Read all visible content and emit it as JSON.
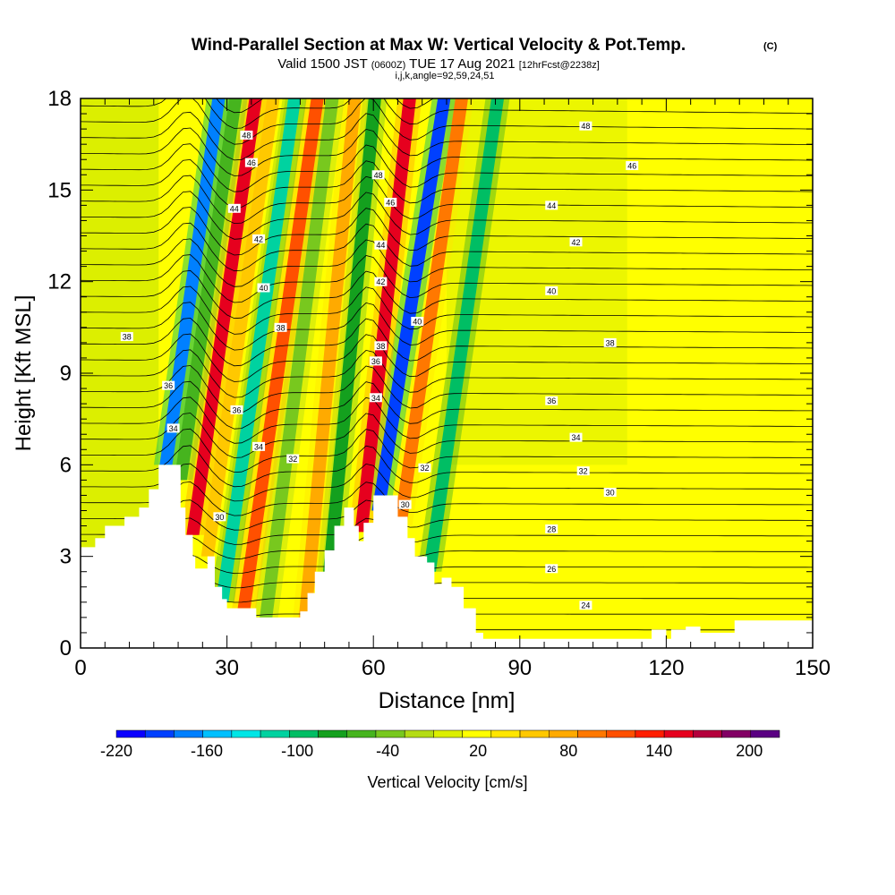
{
  "header": {
    "title_main": "Wind-Parallel Section at Max W: Vertical Velocity & Pot.Temp.",
    "title_tag": "(C)",
    "valid_a": "Valid 1500 JST",
    "valid_utc": "(0600Z)",
    "valid_b": "TUE 17 Aug 2021",
    "forecast": "[12hrFcst@2238z]",
    "indices": "i,j,k,angle=92,59,24,51"
  },
  "chart_data": {
    "type": "heatmap",
    "xlabel": "Distance [nm]",
    "ylabel": "Height [Kft MSL]",
    "xlim": [
      0,
      150
    ],
    "ylim": [
      0,
      18
    ],
    "x_ticks": [
      0,
      30,
      60,
      90,
      120,
      150
    ],
    "y_ticks": [
      0,
      3,
      6,
      9,
      12,
      15,
      18
    ],
    "contour_field": "potential temperature",
    "contour_labels": [
      {
        "text": "48",
        "x": 34.0,
        "y": 16.8
      },
      {
        "text": "46",
        "x": 35.0,
        "y": 15.9
      },
      {
        "text": "44",
        "x": 31.5,
        "y": 14.4
      },
      {
        "text": "42",
        "x": 36.5,
        "y": 13.4
      },
      {
        "text": "40",
        "x": 37.5,
        "y": 11.8
      },
      {
        "text": "38",
        "x": 9.5,
        "y": 10.2
      },
      {
        "text": "38",
        "x": 41.0,
        "y": 10.5
      },
      {
        "text": "36",
        "x": 18.0,
        "y": 8.6
      },
      {
        "text": "36",
        "x": 32.0,
        "y": 7.8
      },
      {
        "text": "34",
        "x": 19.0,
        "y": 7.2
      },
      {
        "text": "34",
        "x": 36.5,
        "y": 6.6
      },
      {
        "text": "32",
        "x": 43.5,
        "y": 6.2
      },
      {
        "text": "30",
        "x": 28.5,
        "y": 4.3
      },
      {
        "text": "48",
        "x": 61.0,
        "y": 15.5
      },
      {
        "text": "46",
        "x": 63.5,
        "y": 14.6
      },
      {
        "text": "44",
        "x": 61.5,
        "y": 13.2
      },
      {
        "text": "42",
        "x": 61.5,
        "y": 12.0
      },
      {
        "text": "40",
        "x": 69.0,
        "y": 10.7
      },
      {
        "text": "38",
        "x": 61.5,
        "y": 9.9
      },
      {
        "text": "36",
        "x": 60.5,
        "y": 9.4
      },
      {
        "text": "34",
        "x": 60.5,
        "y": 8.2
      },
      {
        "text": "32",
        "x": 70.5,
        "y": 5.9
      },
      {
        "text": "30",
        "x": 66.5,
        "y": 4.7
      },
      {
        "text": "48",
        "x": 103.5,
        "y": 17.1
      },
      {
        "text": "46",
        "x": 113.0,
        "y": 15.8
      },
      {
        "text": "44",
        "x": 96.5,
        "y": 14.5
      },
      {
        "text": "42",
        "x": 101.5,
        "y": 13.3
      },
      {
        "text": "40",
        "x": 96.5,
        "y": 11.7
      },
      {
        "text": "38",
        "x": 108.5,
        "y": 10.0
      },
      {
        "text": "36",
        "x": 96.5,
        "y": 8.1
      },
      {
        "text": "34",
        "x": 101.5,
        "y": 6.9
      },
      {
        "text": "32",
        "x": 103.0,
        "y": 5.8
      },
      {
        "text": "30",
        "x": 108.5,
        "y": 5.1
      },
      {
        "text": "28",
        "x": 96.5,
        "y": 3.9
      },
      {
        "text": "26",
        "x": 96.5,
        "y": 2.6
      },
      {
        "text": "24",
        "x": 103.5,
        "y": 1.4
      }
    ],
    "colorbar": {
      "label": "Vertical Velocity [cm/s]",
      "tick_labels": [
        "-220",
        "-160",
        "-100",
        "-40",
        "20",
        "80",
        "140",
        "200"
      ],
      "tick_values": [
        -220,
        -160,
        -100,
        -40,
        20,
        80,
        140,
        200
      ],
      "bins": [
        -220,
        -200,
        -180,
        -160,
        -140,
        -120,
        -100,
        -80,
        -60,
        -40,
        -20,
        0,
        20,
        40,
        60,
        80,
        100,
        120,
        140,
        160,
        180,
        200,
        220
      ],
      "colors": [
        "#0a00ff",
        "#0040ff",
        "#0080ff",
        "#00c0ff",
        "#00e6e6",
        "#00d2a0",
        "#00be64",
        "#14a01e",
        "#46b41e",
        "#78c81e",
        "#b4dc14",
        "#dcef00",
        "#ffff00",
        "#ffe600",
        "#ffc800",
        "#ffaa00",
        "#ff7800",
        "#ff5000",
        "#ff1e00",
        "#e6001e",
        "#b4003c",
        "#820064",
        "#5a0082"
      ]
    },
    "vertical_velocity_cells": [
      {
        "x": 17.5,
        "y_bottom": 6.0,
        "y_top": 18.0,
        "value": -180,
        "tilt": 0.9
      },
      {
        "x": 20.5,
        "y_bottom": 5.5,
        "y_top": 18.0,
        "value": -60,
        "tilt": 0.9
      },
      {
        "x": 23.0,
        "y_bottom": 3.7,
        "y_top": 18.0,
        "value": 160,
        "tilt": 0.9
      },
      {
        "x": 26.0,
        "y_bottom": 3.0,
        "y_top": 18.0,
        "value": 60,
        "tilt": 0.9
      },
      {
        "x": 29.0,
        "y_bottom": 1.5,
        "y_top": 18.0,
        "value": -120,
        "tilt": 0.9
      },
      {
        "x": 33.5,
        "y_bottom": 1.3,
        "y_top": 18.0,
        "value": 120,
        "tilt": 0.9
      },
      {
        "x": 38.0,
        "y_bottom": 1.0,
        "y_top": 18.0,
        "value": -40,
        "tilt": 0.8
      },
      {
        "x": 46.0,
        "y_bottom": 1.0,
        "y_top": 18.0,
        "value": 80,
        "tilt": 0.6
      },
      {
        "x": 51.0,
        "y_bottom": 2.5,
        "y_top": 18.0,
        "value": -80,
        "tilt": 0.6
      },
      {
        "x": 57.5,
        "y_bottom": 3.8,
        "y_top": 18.0,
        "value": 160,
        "tilt": 0.7
      },
      {
        "x": 61.0,
        "y_bottom": 4.5,
        "y_top": 18.0,
        "value": -200,
        "tilt": 1.0
      },
      {
        "x": 65.5,
        "y_bottom": 4.0,
        "y_top": 18.0,
        "value": 100,
        "tilt": 0.9
      },
      {
        "x": 71.5,
        "y_bottom": 2.5,
        "y_top": 18.0,
        "value": -100,
        "tilt": 0.9
      }
    ],
    "terrain_top": [
      {
        "x": 0,
        "y": 3.3
      },
      {
        "x": 3,
        "y": 3.6
      },
      {
        "x": 5,
        "y": 4.0
      },
      {
        "x": 9,
        "y": 4.3
      },
      {
        "x": 12,
        "y": 4.6
      },
      {
        "x": 14,
        "y": 5.2
      },
      {
        "x": 16,
        "y": 6.0
      },
      {
        "x": 19,
        "y": 6.0
      },
      {
        "x": 20.5,
        "y": 4.6
      },
      {
        "x": 21.5,
        "y": 3.7
      },
      {
        "x": 23,
        "y": 3.0
      },
      {
        "x": 23.5,
        "y": 2.6
      },
      {
        "x": 26,
        "y": 3.0
      },
      {
        "x": 27.5,
        "y": 2.0
      },
      {
        "x": 29,
        "y": 1.6
      },
      {
        "x": 30,
        "y": 1.3
      },
      {
        "x": 35,
        "y": 1.3
      },
      {
        "x": 36,
        "y": 1.0
      },
      {
        "x": 43,
        "y": 1.0
      },
      {
        "x": 45,
        "y": 1.2
      },
      {
        "x": 46.5,
        "y": 1.8
      },
      {
        "x": 48,
        "y": 2.5
      },
      {
        "x": 50,
        "y": 3.2
      },
      {
        "x": 52,
        "y": 4.0
      },
      {
        "x": 54,
        "y": 4.6
      },
      {
        "x": 56,
        "y": 4.0
      },
      {
        "x": 57,
        "y": 3.5
      },
      {
        "x": 58,
        "y": 4.1
      },
      {
        "x": 60,
        "y": 5.0
      },
      {
        "x": 63,
        "y": 5.0
      },
      {
        "x": 65,
        "y": 4.3
      },
      {
        "x": 67,
        "y": 3.6
      },
      {
        "x": 68.5,
        "y": 3.0
      },
      {
        "x": 71,
        "y": 2.8
      },
      {
        "x": 72.5,
        "y": 2.1
      },
      {
        "x": 74,
        "y": 2.3
      },
      {
        "x": 76,
        "y": 2.0
      },
      {
        "x": 78.5,
        "y": 1.3
      },
      {
        "x": 81,
        "y": 0.5
      },
      {
        "x": 82.5,
        "y": 0.3
      },
      {
        "x": 115,
        "y": 0.3
      },
      {
        "x": 117,
        "y": 0.6
      },
      {
        "x": 120,
        "y": 0.3
      },
      {
        "x": 121,
        "y": 0.6
      },
      {
        "x": 124,
        "y": 0.7
      },
      {
        "x": 127,
        "y": 0.5
      },
      {
        "x": 131,
        "y": 0.5
      },
      {
        "x": 134,
        "y": 0.9
      },
      {
        "x": 150,
        "y": 0.9
      }
    ]
  }
}
